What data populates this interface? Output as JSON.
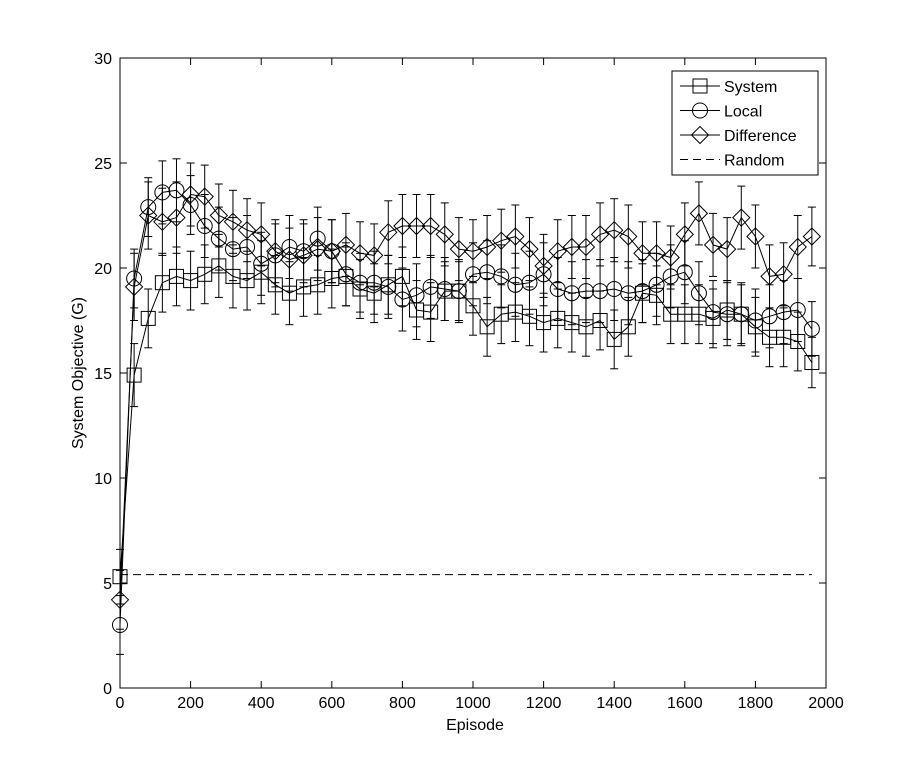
{
  "chart_data": {
    "type": "line",
    "title": "",
    "xlabel": "Episode",
    "ylabel": "System Objective (G)",
    "xlim": [
      0,
      2000
    ],
    "ylim": [
      0,
      30
    ],
    "xticks": [
      0,
      200,
      400,
      600,
      800,
      1000,
      1200,
      1400,
      1600,
      1800,
      2000
    ],
    "yticks": [
      0,
      5,
      10,
      15,
      20,
      25,
      30
    ],
    "grid": false,
    "legend_position": "top-right",
    "x": [
      0,
      40,
      80,
      120,
      160,
      200,
      240,
      280,
      320,
      360,
      400,
      440,
      480,
      520,
      560,
      600,
      640,
      680,
      720,
      760,
      800,
      840,
      880,
      920,
      960,
      1000,
      1040,
      1080,
      1120,
      1160,
      1200,
      1240,
      1280,
      1320,
      1360,
      1400,
      1440,
      1480,
      1520,
      1560,
      1600,
      1640,
      1680,
      1720,
      1760,
      1800,
      1840,
      1880,
      1920,
      1960
    ],
    "series": [
      {
        "name": "System",
        "marker": "square",
        "values": [
          5.3,
          14.9,
          17.6,
          19.3,
          19.6,
          19.4,
          19.7,
          20.1,
          19.6,
          19.4,
          19.8,
          19.2,
          18.8,
          19.1,
          19.2,
          19.5,
          19.6,
          19.0,
          18.8,
          19.2,
          19.6,
          18.0,
          17.9,
          18.9,
          18.9,
          18.2,
          17.2,
          17.8,
          17.9,
          17.7,
          17.4,
          17.6,
          17.4,
          17.2,
          17.5,
          16.6,
          17.2,
          18.8,
          18.7,
          17.8,
          17.8,
          17.8,
          17.6,
          18.0,
          17.8,
          17.2,
          16.7,
          16.7,
          16.5,
          15.5
        ],
        "errors": [
          1.3,
          1.5,
          1.4,
          1.4,
          1.4,
          1.4,
          1.4,
          1.5,
          1.5,
          1.4,
          1.5,
          1.4,
          1.5,
          1.4,
          1.4,
          1.4,
          1.4,
          1.4,
          1.4,
          1.4,
          1.4,
          1.4,
          1.4,
          1.4,
          1.4,
          1.4,
          1.4,
          1.4,
          1.4,
          1.4,
          1.4,
          1.4,
          1.4,
          1.4,
          1.4,
          1.4,
          1.4,
          1.4,
          1.4,
          1.4,
          1.4,
          1.4,
          1.4,
          1.4,
          1.4,
          1.4,
          1.4,
          1.4,
          1.4,
          1.2
        ]
      },
      {
        "name": "Local",
        "marker": "circle",
        "values": [
          3.0,
          19.5,
          22.9,
          23.6,
          23.7,
          23.0,
          22.0,
          21.4,
          20.9,
          21.0,
          20.2,
          20.6,
          21.0,
          20.8,
          21.4,
          20.8,
          19.7,
          19.3,
          19.3,
          19.1,
          18.5,
          18.7,
          19.1,
          19.0,
          18.9,
          19.7,
          19.8,
          19.6,
          19.2,
          19.3,
          19.7,
          19.0,
          18.8,
          18.9,
          18.9,
          19.0,
          18.8,
          18.9,
          19.2,
          19.6,
          19.8,
          18.8,
          17.9,
          17.8,
          17.8,
          17.5,
          17.7,
          17.9,
          18.0,
          17.1
        ],
        "errors": [
          1.4,
          1.4,
          1.4,
          1.5,
          1.5,
          1.4,
          1.5,
          1.5,
          1.5,
          1.5,
          1.5,
          1.5,
          1.5,
          1.5,
          1.5,
          1.5,
          1.5,
          1.4,
          1.5,
          1.5,
          1.5,
          1.5,
          1.5,
          1.5,
          1.5,
          1.5,
          1.5,
          1.5,
          1.5,
          1.5,
          1.5,
          1.5,
          1.5,
          1.5,
          1.5,
          1.5,
          1.5,
          1.5,
          1.5,
          1.5,
          1.5,
          1.5,
          1.5,
          1.5,
          1.5,
          1.5,
          1.5,
          1.5,
          1.5,
          1.3
        ]
      },
      {
        "name": "Difference",
        "marker": "diamond",
        "values": [
          4.2,
          19.1,
          22.5,
          22.2,
          22.4,
          23.5,
          23.4,
          22.5,
          22.2,
          21.8,
          21.6,
          20.8,
          20.4,
          20.6,
          20.9,
          20.8,
          21.1,
          20.7,
          20.6,
          21.7,
          22.0,
          22.0,
          22.0,
          21.6,
          20.9,
          20.8,
          21.0,
          21.3,
          21.5,
          20.9,
          20.1,
          20.8,
          21.0,
          21.0,
          21.6,
          21.8,
          21.5,
          20.7,
          20.7,
          20.5,
          21.6,
          22.6,
          21.1,
          20.9,
          22.4,
          21.5,
          19.6,
          19.7,
          21.0,
          21.5
        ],
        "errors": [
          1.4,
          1.6,
          1.6,
          1.6,
          1.7,
          1.5,
          1.5,
          1.5,
          1.5,
          1.5,
          1.5,
          1.5,
          1.5,
          1.5,
          1.5,
          1.5,
          1.5,
          1.5,
          1.5,
          1.5,
          1.5,
          1.5,
          1.5,
          1.5,
          1.5,
          1.5,
          1.5,
          1.5,
          1.5,
          1.5,
          1.5,
          1.5,
          1.5,
          1.5,
          1.5,
          1.5,
          1.5,
          1.5,
          1.5,
          1.5,
          1.5,
          1.5,
          1.5,
          1.5,
          1.5,
          1.5,
          1.5,
          1.5,
          1.5,
          1.4
        ]
      },
      {
        "name": "Random",
        "marker": "none",
        "line_style": "dashed",
        "x": [
          0,
          1960
        ],
        "values": [
          5.4,
          5.4
        ]
      }
    ]
  }
}
